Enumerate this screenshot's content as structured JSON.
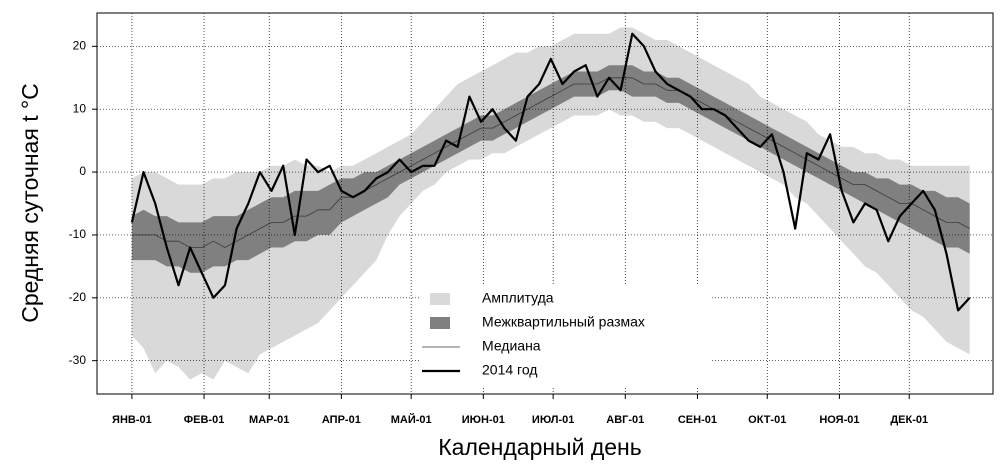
{
  "chart_data": {
    "type": "band-line",
    "xlabel": "Календарный день",
    "ylabel": "Средняя суточная t °C",
    "xlim": [
      -14,
      371
    ],
    "ylim": [
      -35.3,
      25.3
    ],
    "xticks": [
      {
        "value": 1,
        "label": "ЯНВ-01"
      },
      {
        "value": 32,
        "label": "ФЕВ-01"
      },
      {
        "value": 60,
        "label": "МАР-01"
      },
      {
        "value": 91,
        "label": "АПР-01"
      },
      {
        "value": 121,
        "label": "МАЙ-01"
      },
      {
        "value": 152,
        "label": "ИЮН-01"
      },
      {
        "value": 182,
        "label": "ИЮЛ-01"
      },
      {
        "value": 213,
        "label": "АВГ-01"
      },
      {
        "value": 244,
        "label": "СЕН-01"
      },
      {
        "value": 274,
        "label": "ОКТ-01"
      },
      {
        "value": 305,
        "label": "НОЯ-01"
      },
      {
        "value": 335,
        "label": "ДЕК-01"
      }
    ],
    "yticks": [
      -30,
      -20,
      -10,
      0,
      10,
      20
    ],
    "grid": true,
    "legend": "bottom-center",
    "x": [
      1,
      6,
      11,
      16,
      21,
      26,
      31,
      36,
      41,
      46,
      51,
      56,
      61,
      66,
      71,
      76,
      81,
      86,
      91,
      96,
      101,
      106,
      111,
      116,
      121,
      126,
      131,
      136,
      141,
      146,
      151,
      156,
      161,
      166,
      171,
      176,
      181,
      186,
      191,
      196,
      201,
      206,
      211,
      216,
      221,
      226,
      231,
      236,
      241,
      246,
      251,
      256,
      261,
      266,
      271,
      276,
      281,
      286,
      291,
      296,
      301,
      306,
      311,
      316,
      321,
      326,
      331,
      336,
      341,
      346,
      351,
      356,
      361
    ],
    "series": [
      {
        "name": "Амплитуда",
        "color": "#d9d9d9",
        "kind": "band",
        "low": [
          -26,
          -28,
          -32,
          -30,
          -31,
          -33,
          -32,
          -33,
          -30,
          -31,
          -32,
          -29,
          -28,
          -27,
          -26,
          -25,
          -24,
          -22,
          -20,
          -18,
          -16,
          -14,
          -10,
          -7,
          -5,
          -3,
          -2,
          0,
          1,
          2,
          2,
          3,
          3,
          4,
          5,
          6,
          7,
          8,
          9,
          9,
          9,
          10,
          9,
          9,
          8,
          8,
          7,
          7,
          6,
          5,
          4,
          3,
          2,
          1,
          0,
          -1,
          -2,
          -4,
          -5,
          -7,
          -9,
          -11,
          -13,
          -15,
          -16,
          -18,
          -20,
          -22,
          -23,
          -25,
          -27,
          -28,
          -29
        ],
        "high": [
          -1,
          0,
          0,
          -1,
          -2,
          -2,
          -2,
          -1,
          -1,
          0,
          0,
          0,
          1,
          1,
          2,
          1,
          1,
          0,
          1,
          1,
          2,
          3,
          4,
          5,
          6,
          8,
          10,
          12,
          14,
          15,
          16,
          17,
          18,
          19,
          19,
          20,
          20,
          21,
          22,
          22,
          22,
          22,
          23,
          23,
          22,
          21,
          21,
          20,
          19,
          18,
          17,
          16,
          15,
          14,
          12,
          11,
          10,
          9,
          8,
          6,
          5,
          4,
          4,
          3,
          3,
          2,
          2,
          1,
          1,
          1,
          1,
          1,
          1
        ]
      },
      {
        "name": "Межквартильный размах",
        "color": "#808080",
        "kind": "band",
        "low": [
          -14,
          -14,
          -14,
          -15,
          -15,
          -16,
          -16,
          -15,
          -15,
          -14,
          -14,
          -13,
          -12,
          -12,
          -11,
          -11,
          -10,
          -10,
          -8,
          -7,
          -6,
          -5,
          -4,
          -2,
          -1,
          0,
          1,
          2,
          3,
          4,
          5,
          5,
          6,
          7,
          8,
          9,
          10,
          11,
          12,
          12,
          12,
          13,
          13,
          12,
          12,
          12,
          11,
          11,
          10,
          9,
          8,
          7,
          6,
          5,
          4,
          3,
          2,
          1,
          0,
          -1,
          -2,
          -3,
          -4,
          -5,
          -6,
          -7,
          -8,
          -9,
          -10,
          -11,
          -12,
          -12,
          -13
        ],
        "high": [
          -7,
          -6,
          -7,
          -7,
          -8,
          -8,
          -8,
          -7,
          -7,
          -7,
          -6,
          -5,
          -4,
          -4,
          -3,
          -3,
          -3,
          -2,
          -1,
          -1,
          0,
          0,
          1,
          2,
          3,
          4,
          5,
          6,
          7,
          8,
          9,
          9,
          10,
          11,
          12,
          13,
          14,
          15,
          16,
          16,
          16,
          17,
          17,
          17,
          16,
          16,
          15,
          15,
          14,
          13,
          12,
          11,
          10,
          9,
          8,
          7,
          6,
          5,
          4,
          3,
          2,
          1,
          0,
          0,
          -1,
          -1,
          -2,
          -2,
          -3,
          -3,
          -4,
          -4,
          -5
        ]
      },
      {
        "name": "Медиана",
        "color": "#3a3a3a",
        "kind": "line",
        "width": 0.8,
        "values": [
          -10,
          -10,
          -10,
          -11,
          -11,
          -12,
          -12,
          -11,
          -12,
          -11,
          -10,
          -9,
          -8,
          -8,
          -7,
          -7,
          -6,
          -6,
          -4,
          -4,
          -3,
          -2,
          -1,
          0,
          1,
          2,
          3,
          4,
          5,
          6,
          7,
          7,
          8,
          9,
          10,
          11,
          12,
          13,
          14,
          14,
          14,
          15,
          15,
          15,
          14,
          14,
          13,
          13,
          12,
          11,
          10,
          9,
          8,
          7,
          6,
          5,
          4,
          3,
          2,
          1,
          0,
          -1,
          -2,
          -2,
          -3,
          -4,
          -5,
          -5,
          -6,
          -7,
          -8,
          -8,
          -9
        ]
      },
      {
        "name": "2014 год",
        "color": "#000000",
        "kind": "line",
        "width": 2.2,
        "values": [
          -8,
          0,
          -5,
          -12,
          -18,
          -12,
          -16,
          -20,
          -18,
          -9,
          -5,
          0,
          -3,
          1,
          -10,
          2,
          0,
          1,
          -3,
          -4,
          -3,
          -1,
          0,
          2,
          0,
          1,
          1,
          5,
          4,
          12,
          8,
          10,
          7,
          5,
          12,
          14,
          18,
          14,
          16,
          17,
          12,
          15,
          13,
          22,
          20,
          16,
          14,
          13,
          12,
          10,
          10,
          9,
          7,
          5,
          4,
          6,
          0,
          -9,
          3,
          2,
          6,
          -3,
          -8,
          -5,
          -6,
          -11,
          -7,
          -5,
          -3,
          -6,
          -13,
          -22,
          -20
        ]
      }
    ]
  }
}
